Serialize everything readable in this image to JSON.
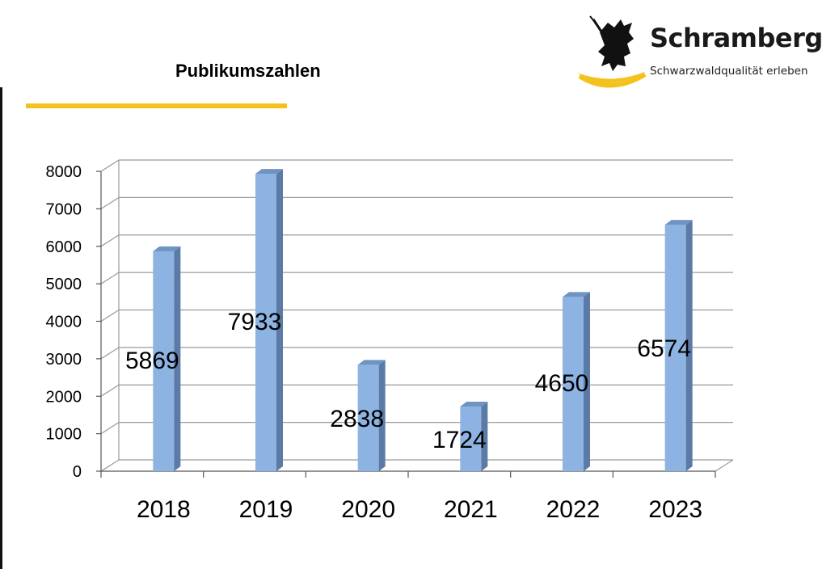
{
  "title": "Publikumszahlen",
  "logo": {
    "name": "Schramberg",
    "tagline": "Schwarzwaldqualität erleben",
    "accent_color": "#f4c21c"
  },
  "colors": {
    "accent": "#f4c21c",
    "bar_front": "#8db3e2",
    "bar_side": "#5b7ba6",
    "bar_top": "#6f93c3",
    "grid": "#9a9a9a"
  },
  "chart_data": {
    "type": "bar",
    "title": "",
    "xlabel": "",
    "ylabel": "",
    "categories": [
      "2018",
      "2019",
      "2020",
      "2021",
      "2022",
      "2023"
    ],
    "values": [
      5869,
      7933,
      2838,
      1724,
      4650,
      6574
    ],
    "data_labels": [
      "5869",
      "7933",
      "2838",
      "1724",
      "4650",
      "6574"
    ],
    "ylim": [
      0,
      8000
    ],
    "yticks": [
      0,
      1000,
      2000,
      3000,
      4000,
      5000,
      6000,
      7000,
      8000
    ],
    "grid": true,
    "legend": "none",
    "style": "3d-column"
  }
}
